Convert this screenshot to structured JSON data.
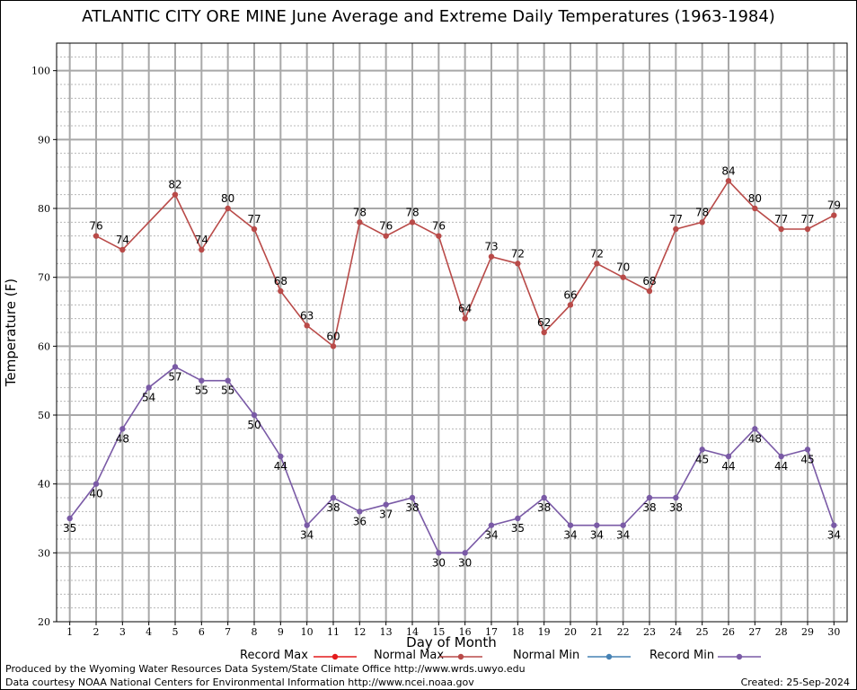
{
  "chart_data": {
    "type": "line",
    "title": "ATLANTIC CITY ORE MINE June Average and Extreme Daily Temperatures (1963-1984)",
    "xlabel": "Day of Month",
    "ylabel": "Temperature (F)",
    "xlim": [
      0.5,
      30.5
    ],
    "ylim": [
      20,
      104
    ],
    "x_ticks": [
      1,
      2,
      3,
      4,
      5,
      6,
      7,
      8,
      9,
      10,
      11,
      12,
      13,
      14,
      15,
      16,
      17,
      18,
      19,
      20,
      21,
      22,
      23,
      24,
      25,
      26,
      27,
      28,
      29,
      30
    ],
    "y_ticks": [
      20,
      30,
      40,
      50,
      60,
      70,
      80,
      90,
      100
    ],
    "grid": true,
    "legend_position": "bottom",
    "legend": [
      {
        "name": "Record Max",
        "color": "#e41a1c"
      },
      {
        "name": "Normal Max",
        "color": "#b94a48"
      },
      {
        "name": "Normal Min",
        "color": "#4682b4"
      },
      {
        "name": "Record Min",
        "color": "#7a5aa6"
      }
    ],
    "series": [
      {
        "name": "Normal Max",
        "color": "#b94a48",
        "x": [
          2,
          3,
          5,
          6,
          7,
          8,
          9,
          10,
          11,
          12,
          13,
          14,
          15,
          16,
          17,
          18,
          19,
          20,
          21,
          22,
          23,
          24,
          25,
          26,
          27,
          28,
          29,
          30
        ],
        "values": [
          76,
          74,
          82,
          74,
          80,
          77,
          68,
          63,
          60,
          78,
          76,
          78,
          76,
          64,
          73,
          72,
          62,
          66,
          72,
          70,
          68,
          77,
          78,
          84,
          80,
          77,
          77,
          79
        ]
      },
      {
        "name": "Record Min",
        "color": "#7a5aa6",
        "x": [
          1,
          2,
          3,
          4,
          5,
          6,
          7,
          8,
          9,
          10,
          11,
          12,
          13,
          14,
          15,
          16,
          17,
          18,
          19,
          20,
          21,
          22,
          23,
          24,
          25,
          26,
          27,
          28,
          29,
          30
        ],
        "values": [
          35,
          40,
          48,
          54,
          57,
          55,
          55,
          50,
          44,
          34,
          38,
          36,
          37,
          38,
          30,
          30,
          34,
          35,
          38,
          34,
          34,
          34,
          38,
          38,
          45,
          44,
          48,
          44,
          45,
          34
        ]
      }
    ]
  },
  "footer": {
    "line1": "Produced by the Wyoming Water Resources Data System/State Climate Office http://www.wrds.uwyo.edu",
    "line2": "Data courtesy NOAA National Centers for Environmental Information http://www.ncei.noaa.gov",
    "created": "Created: 25-Sep-2024"
  }
}
